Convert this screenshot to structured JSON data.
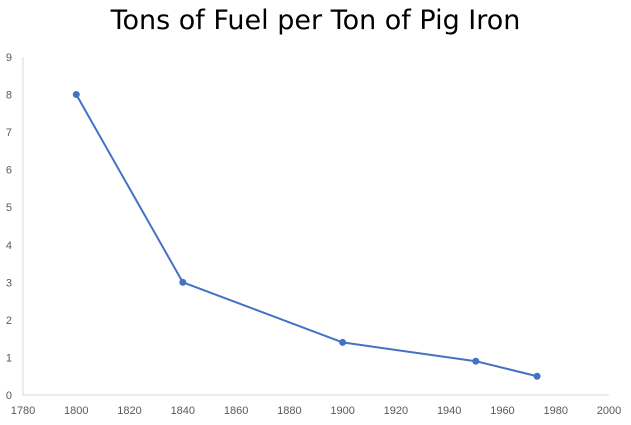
{
  "chart_data": {
    "type": "line",
    "title": "Tons of Fuel per Ton of Pig Iron",
    "xlabel": "",
    "ylabel": "",
    "x": [
      1800,
      1840,
      1900,
      1950,
      1973
    ],
    "series": [
      {
        "values": [
          8,
          3,
          1.4,
          0.9,
          0.5
        ]
      }
    ],
    "xlim": [
      1780,
      2000
    ],
    "ylim": [
      0,
      9
    ],
    "xticks": [
      "1780",
      "1800",
      "1820",
      "1840",
      "1860",
      "1880",
      "1900",
      "1920",
      "1940",
      "1960",
      "1980",
      "2000"
    ],
    "yticks": [
      "0",
      "1",
      "2",
      "3",
      "4",
      "5",
      "6",
      "7",
      "8",
      "9"
    ],
    "grid": false,
    "legend": "none",
    "line_color": "#4472C4",
    "axis_color": "#D9D9D9"
  }
}
